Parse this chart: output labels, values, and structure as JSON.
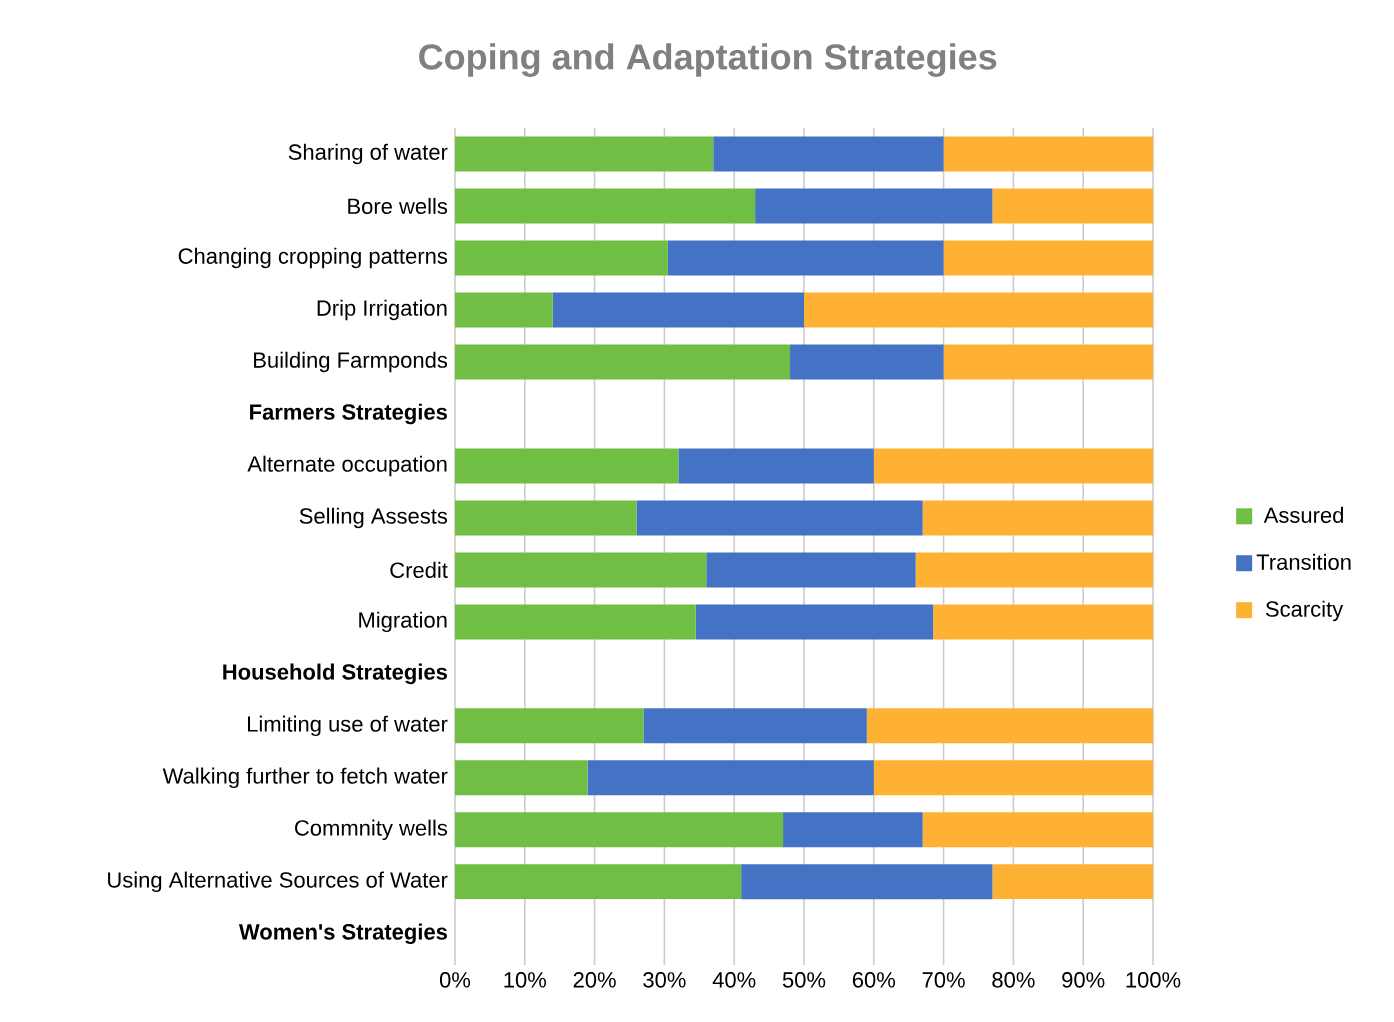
{
  "chart_data": {
    "type": "bar",
    "orientation": "horizontal",
    "stacked": true,
    "title": "Coping and Adaptation Strategies",
    "categories": [
      "Sharing of water",
      "Bore wells",
      "Changing cropping patterns",
      "Drip Irrigation",
      "Building Farmponds",
      "**Farmers Strategies**",
      "Alternate occupation",
      "Selling Assests",
      "Credit",
      "Migration",
      "**Household Strategies**",
      "Limiting use of water",
      "Walking further to fetch water",
      "Commnity wells",
      "Using Alternative Sources of Water",
      "**Women's Strategies**"
    ],
    "series": [
      {
        "name": "Assured",
        "color": "#70bf44",
        "values": [
          37,
          43,
          30.5,
          14,
          48,
          null,
          32,
          26,
          36,
          34.5,
          null,
          27,
          19,
          47,
          41,
          null
        ]
      },
      {
        "name": "Transition",
        "color": "#4472c4",
        "values": [
          33,
          34,
          39.5,
          36,
          22,
          null,
          28,
          41,
          30,
          34,
          null,
          32,
          41,
          20,
          36,
          null
        ]
      },
      {
        "name": "Scarcity",
        "color": "#ffb133",
        "values": [
          30,
          23,
          30,
          50,
          30,
          null,
          40,
          33,
          34,
          31.5,
          null,
          41,
          40,
          33,
          23,
          null
        ]
      }
    ],
    "xlim": [
      0,
      100
    ],
    "xticks": [
      {
        "value": 0,
        "label": "0%"
      },
      {
        "value": 10,
        "label": "10%"
      },
      {
        "value": 20,
        "label": "20%"
      },
      {
        "value": 30,
        "label": "30%"
      },
      {
        "value": 40,
        "label": "40%"
      },
      {
        "value": 50,
        "label": "50%"
      },
      {
        "value": 60,
        "label": "60%"
      },
      {
        "value": 70,
        "label": "70%"
      },
      {
        "value": 80,
        "label": "80%"
      },
      {
        "value": 90,
        "label": "90%"
      },
      {
        "value": 100,
        "label": "100%"
      }
    ],
    "grid": "x",
    "legend": "right"
  }
}
